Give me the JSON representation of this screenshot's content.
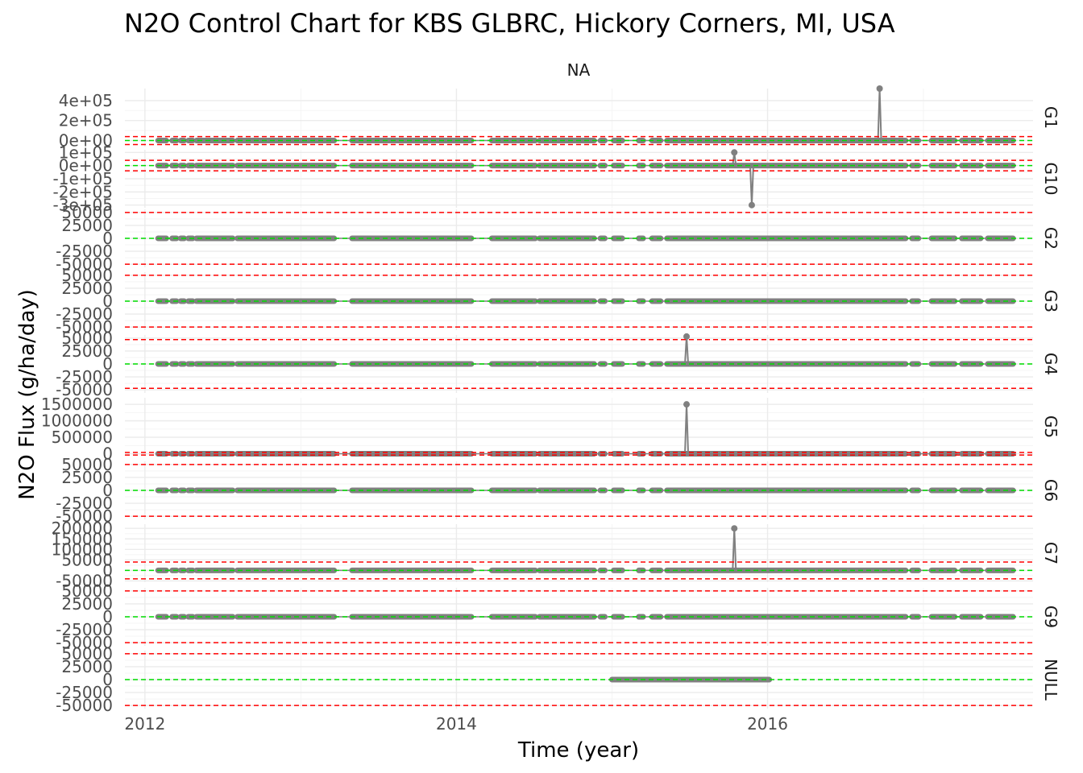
{
  "chart_data": {
    "type": "line",
    "title": "N2O Control Chart for KBS GLBRC, Hickory Corners, MI, USA",
    "strip_label": "NA",
    "xlabel": "Time (year)",
    "ylabel": "N2O Flux (g/ha/day)",
    "x_ticks": [
      "2012",
      "2014",
      "2016"
    ],
    "xlim": [
      "2011-11-15",
      "2017-09-15"
    ],
    "colors": {
      "series": "#808080",
      "control_limit": "#ff0000",
      "center_line": "#00dd00",
      "grid_major": "#ebebeb",
      "grid_minor": "#f5f5f5"
    },
    "data_segments": [
      [
        "2012-02-01",
        "2012-02-20"
      ],
      [
        "2012-03-05",
        "2012-03-15"
      ],
      [
        "2012-03-25",
        "2012-04-02"
      ],
      [
        "2012-04-12",
        "2012-04-22"
      ],
      [
        "2012-05-01",
        "2012-07-25"
      ],
      [
        "2012-08-05",
        "2013-03-20"
      ],
      [
        "2013-05-01",
        "2014-02-05"
      ],
      [
        "2014-03-25",
        "2014-07-05"
      ],
      [
        "2014-07-15",
        "2014-11-20"
      ],
      [
        "2014-12-05",
        "2014-12-15"
      ],
      [
        "2015-01-05",
        "2015-01-25"
      ],
      [
        "2015-03-05",
        "2015-03-15"
      ],
      [
        "2015-04-05",
        "2015-04-25"
      ],
      [
        "2015-05-10",
        "2016-11-20"
      ],
      [
        "2016-12-05",
        "2016-12-20"
      ],
      [
        "2017-01-20",
        "2017-03-15"
      ],
      [
        "2017-04-01",
        "2017-05-15"
      ],
      [
        "2017-06-01",
        "2017-07-30"
      ]
    ],
    "facets": [
      {
        "name": "G1",
        "y_ticks": [
          "4e+05",
          "2e+05",
          "0e+00"
        ],
        "tick_values": [
          400000,
          200000,
          0
        ],
        "ylim": [
          -60000,
          520000
        ],
        "mean": 0,
        "limits": [
          -40000,
          40000
        ],
        "mean_visible": true,
        "spikes": [
          {
            "date": "2016-09-20",
            "value": 520000
          }
        ],
        "segments": "all"
      },
      {
        "name": "G10",
        "y_ticks": [
          "1e+05",
          "0e+00",
          "-1e+05",
          "-2e+05",
          "-3e+05"
        ],
        "tick_values": [
          100000,
          0,
          -100000,
          -200000,
          -300000
        ],
        "ylim": [
          -320000,
          120000
        ],
        "mean": 0,
        "limits": [
          -40000,
          40000
        ],
        "mean_visible": true,
        "spikes": [
          {
            "date": "2015-10-15",
            "value": 100000
          },
          {
            "date": "2015-11-25",
            "value": -300000
          }
        ],
        "segments": "all"
      },
      {
        "name": "G2",
        "y_ticks": [
          "50000",
          "25000",
          "0",
          "-25000",
          "-50000"
        ],
        "tick_values": [
          50000,
          25000,
          0,
          -25000,
          -50000
        ],
        "ylim": [
          -56000,
          56000
        ],
        "mean": 0,
        "limits": [
          -50000,
          50000
        ],
        "mean_visible": true,
        "spikes": [],
        "segments": "all"
      },
      {
        "name": "G3",
        "y_ticks": [
          "50000",
          "25000",
          "0",
          "-25000",
          "-50000"
        ],
        "tick_values": [
          50000,
          25000,
          0,
          -25000,
          -50000
        ],
        "ylim": [
          -56000,
          56000
        ],
        "mean": 0,
        "limits": [
          -50000,
          50000
        ],
        "mean_visible": true,
        "spikes": [],
        "segments": "all"
      },
      {
        "name": "G4",
        "y_ticks": [
          "50000",
          "25000",
          "0",
          "-25000",
          "-50000"
        ],
        "tick_values": [
          50000,
          25000,
          0,
          -25000,
          -50000
        ],
        "ylim": [
          -56000,
          56000
        ],
        "mean": 0,
        "limits": [
          -47000,
          47000
        ],
        "mean_visible": true,
        "spikes": [
          {
            "date": "2015-06-25",
            "value": 53000
          }
        ],
        "segments": "all"
      },
      {
        "name": "G5",
        "y_ticks": [
          "1500000",
          "1000000",
          "500000",
          "0"
        ],
        "tick_values": [
          1500000,
          1000000,
          500000,
          0
        ],
        "ylim": [
          -60000,
          1700000
        ],
        "mean": 0,
        "limits": [
          -40000,
          40000
        ],
        "mean_visible": false,
        "spikes": [
          {
            "date": "2015-06-25",
            "value": 1500000
          }
        ],
        "segments": "all"
      },
      {
        "name": "G6",
        "y_ticks": [
          "50000",
          "25000",
          "0",
          "-25000",
          "-50000"
        ],
        "tick_values": [
          50000,
          25000,
          0,
          -25000,
          -50000
        ],
        "ylim": [
          -56000,
          56000
        ],
        "mean": 0,
        "limits": [
          -50000,
          50000
        ],
        "mean_visible": true,
        "spikes": [],
        "segments": "all"
      },
      {
        "name": "G7",
        "y_ticks": [
          "200000",
          "150000",
          "100000",
          "50000",
          "0",
          "-50000"
        ],
        "tick_values": [
          200000,
          150000,
          100000,
          50000,
          0,
          -50000
        ],
        "ylim": [
          -56000,
          220000
        ],
        "mean": 0,
        "limits": [
          -40000,
          40000
        ],
        "mean_visible": true,
        "spikes": [
          {
            "date": "2015-10-15",
            "value": 200000
          }
        ],
        "segments": "all"
      },
      {
        "name": "G9",
        "y_ticks": [
          "50000",
          "25000",
          "0",
          "-25000",
          "-50000"
        ],
        "tick_values": [
          50000,
          25000,
          0,
          -25000,
          -50000
        ],
        "ylim": [
          -56000,
          56000
        ],
        "mean": 0,
        "limits": [
          -50000,
          50000
        ],
        "mean_visible": true,
        "spikes": [],
        "segments": "all"
      },
      {
        "name": "NULL",
        "y_ticks": [
          "50000",
          "25000",
          "0",
          "-25000",
          "-50000"
        ],
        "tick_values": [
          50000,
          25000,
          0,
          -25000,
          -50000
        ],
        "ylim": [
          -56000,
          56000
        ],
        "mean": 0,
        "limits": [
          -50000,
          50000
        ],
        "mean_visible": true,
        "spikes": [],
        "segments": [
          [
            "2015-01-01",
            "2016-01-05"
          ]
        ]
      }
    ]
  }
}
